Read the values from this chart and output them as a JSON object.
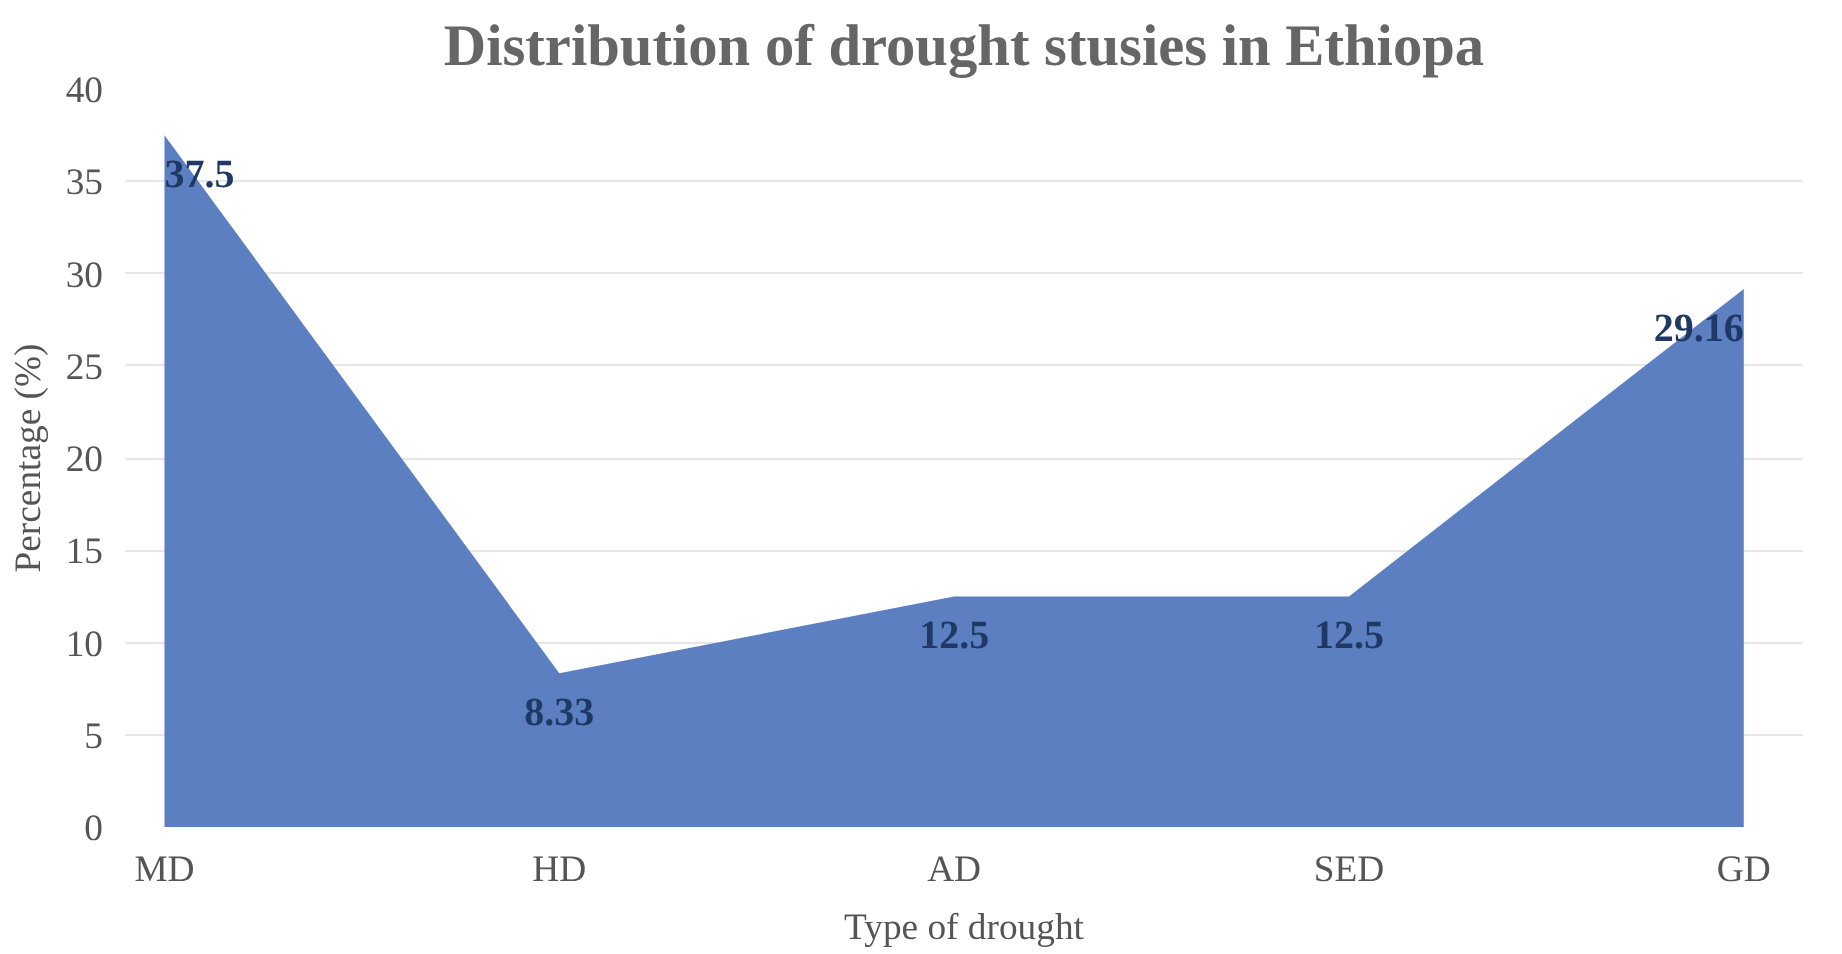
{
  "chart_data": {
    "type": "area",
    "title": "Distribution of drought stusies in Ethiopa",
    "xlabel": "Type of drought",
    "ylabel": "Percentage (%)",
    "categories": [
      "MD",
      "HD",
      "AD",
      "SED",
      "GD"
    ],
    "values": [
      37.5,
      8.33,
      12.5,
      12.5,
      29.16
    ],
    "color": "#5b7fc1",
    "ylim": [
      0,
      40
    ],
    "yticks": [
      0,
      5,
      10,
      15,
      20,
      25,
      30,
      35,
      40
    ],
    "grid": "y",
    "data_labels": true
  }
}
